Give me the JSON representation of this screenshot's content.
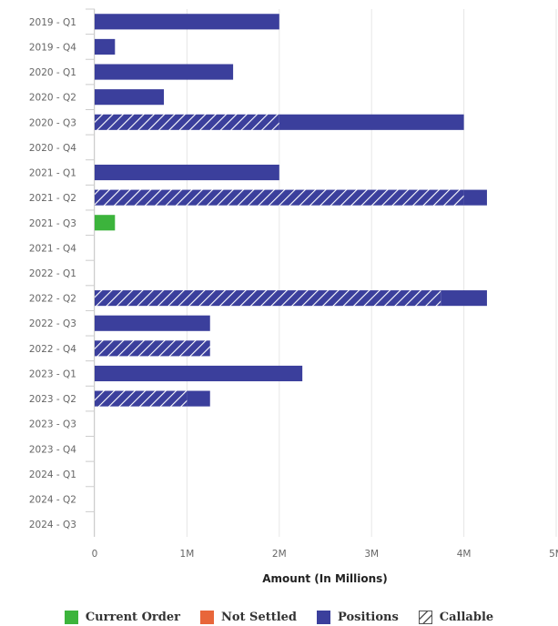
{
  "chart_data": {
    "type": "bar",
    "orientation": "horizontal",
    "stacked": true,
    "categories": [
      "2019 - Q1",
      "2019 - Q4",
      "2020 - Q1",
      "2020 - Q2",
      "2020 - Q3",
      "2020 - Q4",
      "2021 - Q1",
      "2021 - Q2",
      "2021 - Q3",
      "2021 - Q4",
      "2022 - Q1",
      "2022 - Q2",
      "2022 - Q3",
      "2022 - Q4",
      "2023 - Q1",
      "2023 - Q2",
      "2023 - Q3",
      "2023 - Q4",
      "2024 - Q1",
      "2024 - Q2",
      "2024 - Q3"
    ],
    "series": [
      {
        "name": "Current Order",
        "color": "#3cb43c",
        "hatched": false,
        "values": [
          0,
          0,
          0,
          0,
          0,
          0,
          0,
          0,
          0.22,
          0,
          0,
          0,
          0,
          0,
          0,
          0,
          0,
          0,
          0,
          0,
          0
        ]
      },
      {
        "name": "Not Settled",
        "color": "#e8663a",
        "hatched": false,
        "values": [
          0,
          0,
          0,
          0,
          0,
          0,
          0,
          0,
          0,
          0,
          0,
          0,
          0,
          0,
          0,
          0,
          0,
          0,
          0,
          0,
          0
        ]
      },
      {
        "name": "Positions",
        "color": "#3b3f9c",
        "hatched": false,
        "values": [
          2,
          0.22,
          1.5,
          0.75,
          2,
          0,
          2,
          0.25,
          0,
          0,
          0,
          0.5,
          1.25,
          0,
          2.25,
          0.25,
          0,
          0,
          0,
          0,
          0
        ]
      },
      {
        "name": "Callable",
        "color": "#3b3f9c",
        "hatched": true,
        "values": [
          0,
          0,
          0,
          0,
          2,
          0,
          0,
          4,
          0,
          0,
          0,
          3.75,
          0,
          1.25,
          0,
          1,
          0,
          0,
          0,
          0,
          0
        ]
      }
    ],
    "xlabel": "Amount (In Millions)",
    "xlim": [
      0,
      5
    ],
    "xticks": [
      0,
      1,
      2,
      3,
      4,
      5
    ],
    "xtick_labels": [
      "0",
      "1M",
      "2M",
      "3M",
      "4M",
      "5M"
    ],
    "grid": "vertical",
    "legend": "bottom-center"
  },
  "legend": [
    {
      "label": "Current Order",
      "color": "#3cb43c",
      "style": "solid"
    },
    {
      "label": "Not Settled",
      "color": "#e8663a",
      "style": "solid"
    },
    {
      "label": "Positions",
      "color": "#3b3f9c",
      "style": "solid"
    },
    {
      "label": "Callable",
      "color": "#555555",
      "style": "hatched-outline"
    }
  ]
}
